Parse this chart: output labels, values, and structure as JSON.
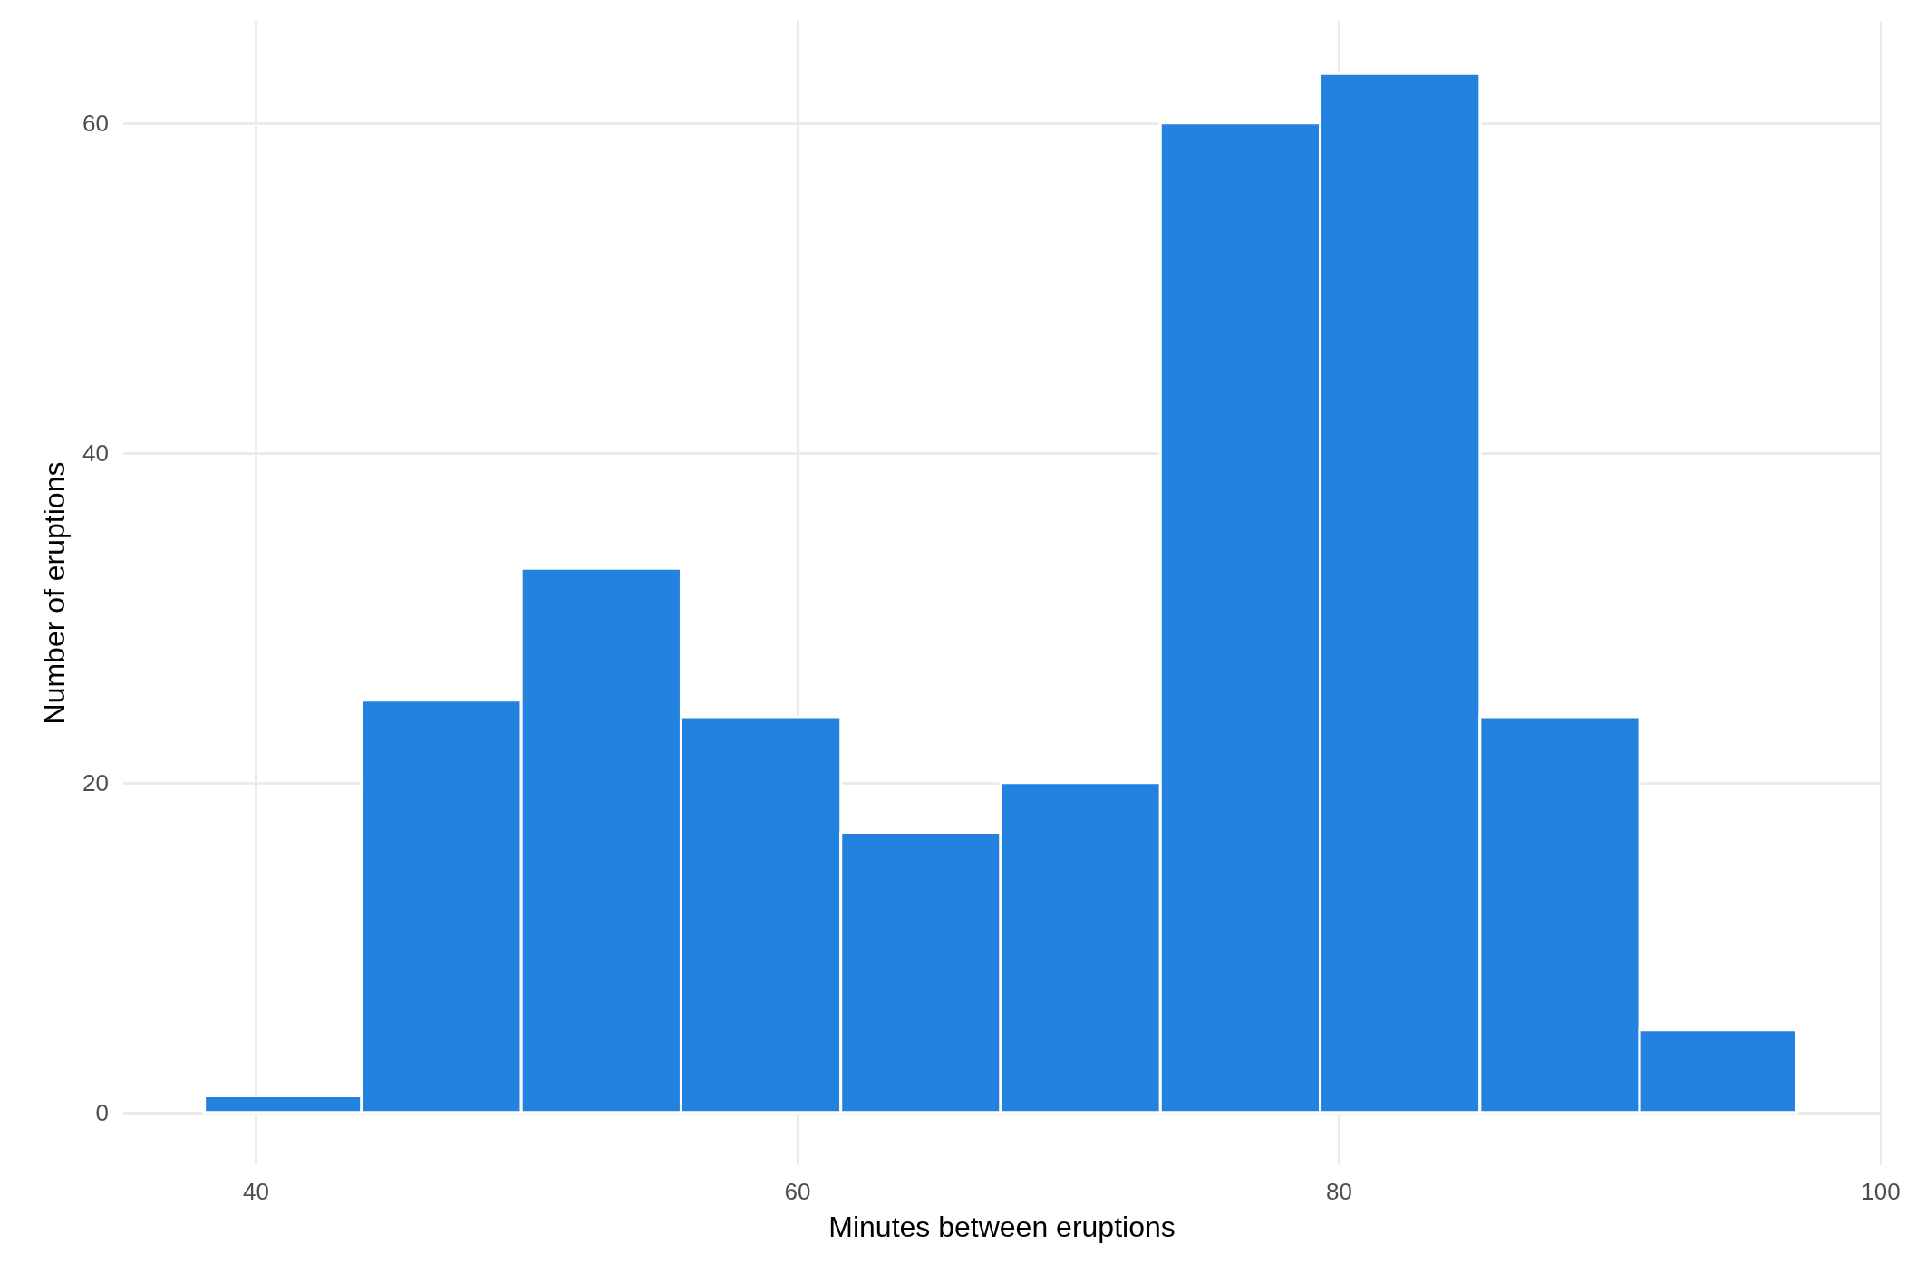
{
  "chart_data": {
    "type": "histogram",
    "xlabel": "Minutes between eruptions",
    "ylabel": "Number of eruptions",
    "bins": [
      38.1,
      43.9,
      49.8,
      55.7,
      61.6,
      67.5,
      73.4,
      79.3,
      85.2,
      91.1,
      96.9
    ],
    "values": [
      1,
      25,
      33,
      24,
      17,
      20,
      60,
      63,
      24,
      5
    ],
    "color": "#2381e0",
    "xlim": [
      35.1,
      100
    ],
    "xticks": [
      40,
      60,
      80,
      100
    ],
    "ylim": [
      -3.2,
      66.2
    ],
    "yticks": [
      0,
      20,
      40,
      60
    ],
    "grid": true
  }
}
